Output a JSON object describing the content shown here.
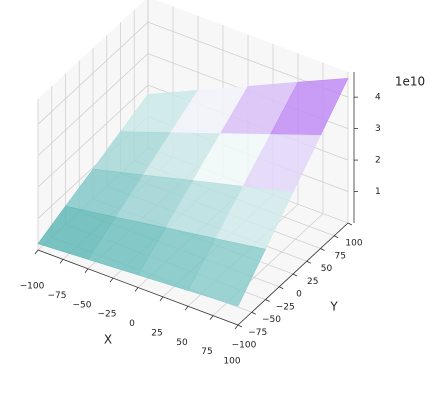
{
  "chart_data": {
    "type": "surface3d",
    "xlabel": "X",
    "ylabel": "Y",
    "zoffset_label": "1e10",
    "x": [
      -100,
      -50,
      0,
      50,
      100
    ],
    "y": [
      -100,
      -50,
      0,
      50,
      100
    ],
    "z": [
      [
        0.2,
        0.3,
        0.4,
        0.5,
        0.6
      ],
      [
        0.58,
        0.83,
        1.09,
        1.34,
        1.6
      ],
      [
        0.95,
        1.36,
        1.78,
        2.19,
        2.6
      ],
      [
        1.33,
        1.89,
        2.46,
        3.03,
        3.6
      ],
      [
        1.7,
        2.43,
        3.15,
        3.88,
        4.6
      ]
    ],
    "xlim": [
      -100,
      100
    ],
    "ylim": [
      -100,
      100
    ],
    "zlim": [
      0,
      4.8
    ],
    "xticks": [
      {
        "value": -100,
        "label": "−100"
      },
      {
        "value": -75,
        "label": "−75"
      },
      {
        "value": -50,
        "label": "−50"
      },
      {
        "value": -25,
        "label": "−25"
      },
      0,
      25,
      50,
      75,
      100
    ],
    "yticks": [
      {
        "value": -100,
        "label": "−100"
      },
      {
        "value": -75,
        "label": "−75"
      },
      {
        "value": -50,
        "label": "−50"
      },
      {
        "value": -25,
        "label": "−25"
      },
      0,
      25,
      50,
      75,
      100
    ],
    "zticks": [
      1,
      2,
      3,
      4
    ],
    "colormap": [
      "#3fa9a9",
      "#f4fafa",
      "#9b3cf0"
    ],
    "grid": true
  }
}
